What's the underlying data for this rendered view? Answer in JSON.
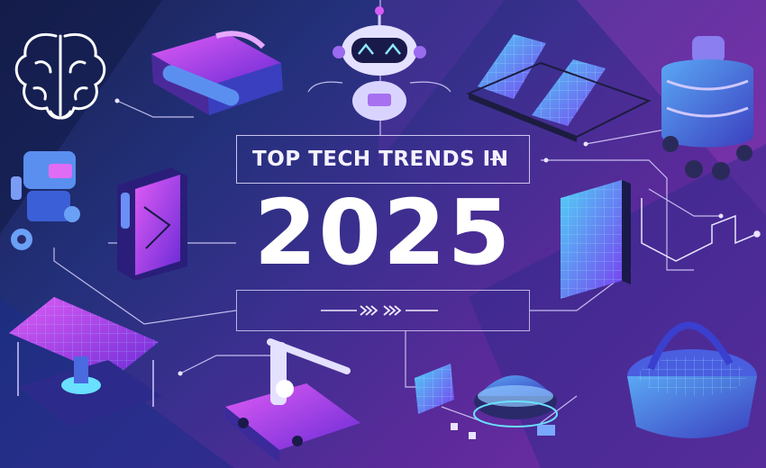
{
  "title": {
    "prefix": "TOP TECH TRENDS IN",
    "year": "2025"
  },
  "icons": [
    "brain-icon",
    "exoskeleton-boot-icon",
    "robot-head-icon",
    "solar-panels-icon",
    "humanoid-robot-icon",
    "small-robot-icon",
    "phone-device-icon",
    "solar-wall-panel-icon",
    "circuit-line-icon",
    "solar-drone-icon",
    "robotic-arm-icon",
    "microchip-icon",
    "dome-device-icon",
    "holo-basin-icon"
  ],
  "colors": {
    "background_left": "#18214f",
    "background_right": "#7a2fa8",
    "accent_cyan": "#4fd3f5",
    "accent_magenta": "#d04ef0",
    "text": "#ffffff"
  }
}
